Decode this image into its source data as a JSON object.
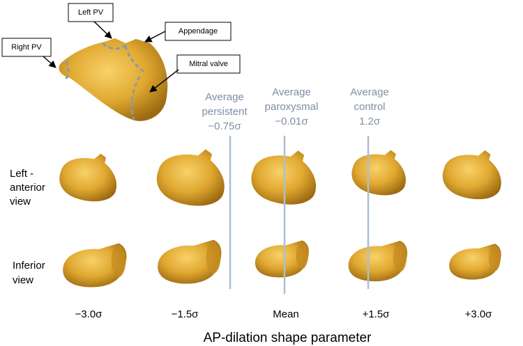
{
  "callouts": [
    "Left PV",
    "Appendage",
    "Right PV",
    "Mitral valve"
  ],
  "averages": [
    {
      "lines": [
        "Average",
        "persistent",
        "−0.75σ"
      ]
    },
    {
      "lines": [
        "Average",
        "paroxysmal",
        "−0.01σ"
      ]
    },
    {
      "lines": [
        "Average",
        "control",
        "1.2σ"
      ]
    }
  ],
  "rows": [
    {
      "lines": [
        "Left -",
        "anterior",
        "view"
      ]
    },
    {
      "lines": [
        "Inferior",
        "view"
      ]
    }
  ],
  "columns": [
    "−3.0σ",
    "−1.5σ",
    "Mean",
    "+1.5σ",
    "+3.0σ"
  ],
  "axis_title": "AP-dilation shape parameter"
}
